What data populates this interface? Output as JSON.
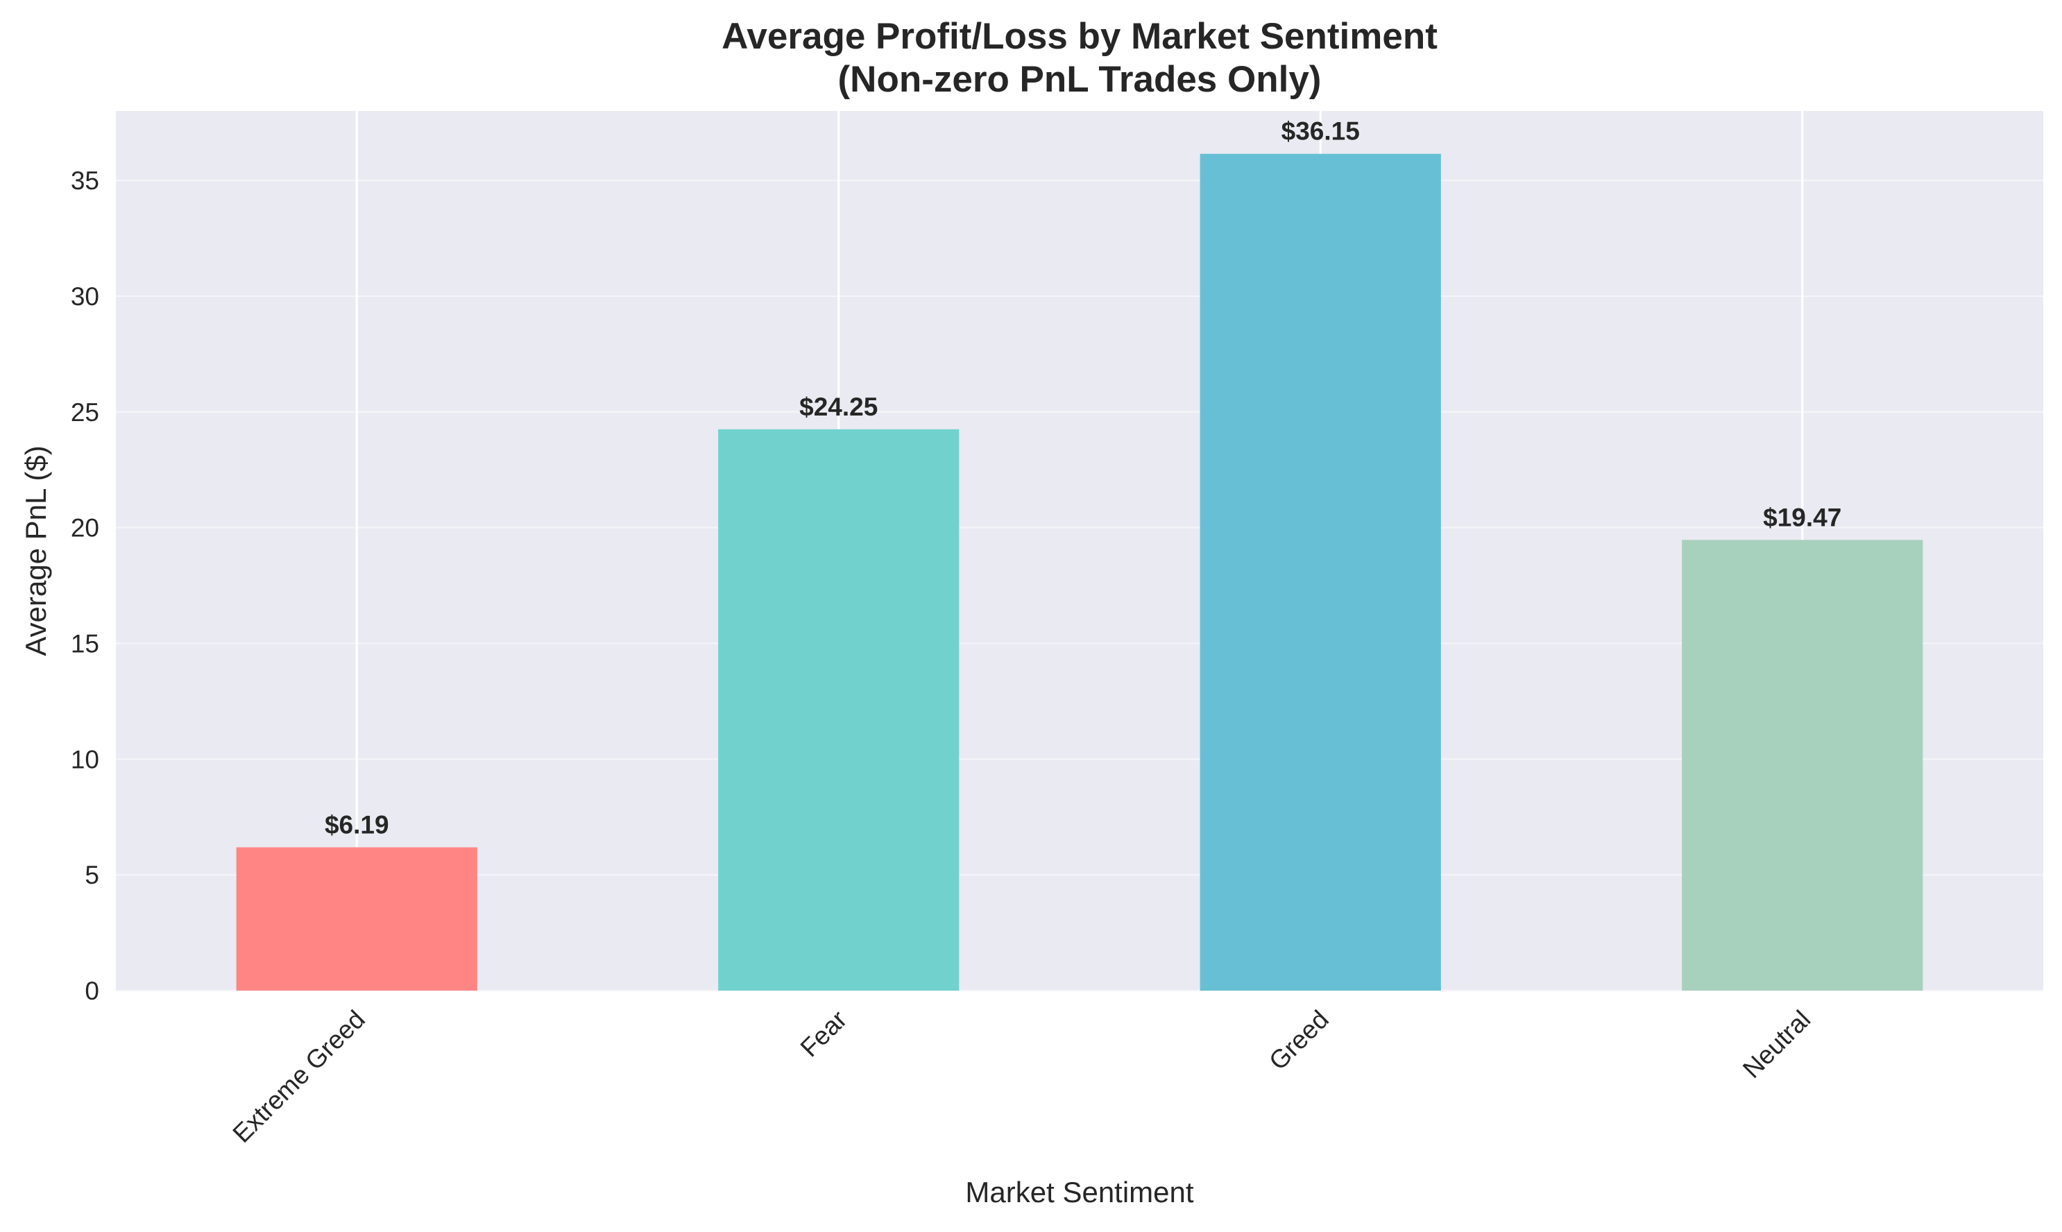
{
  "chart_data": {
    "type": "bar",
    "title": [
      "Average Profit/Loss by Market Sentiment",
      "(Non-zero PnL Trades Only)"
    ],
    "xlabel": "Market Sentiment",
    "ylabel": "Average PnL ($)",
    "categories": [
      "Extreme Greed",
      "Fear",
      "Greed",
      "Neutral"
    ],
    "values": [
      6.19,
      24.25,
      36.15,
      19.47
    ],
    "value_labels": [
      "$6.19",
      "$24.25",
      "$36.15",
      "$19.47"
    ],
    "bar_colors": [
      "#FF8585",
      "#71D2CD",
      "#67BFD5",
      "#A8D1BD"
    ],
    "ylim": [
      0,
      38
    ],
    "yticks": [
      0,
      5,
      10,
      15,
      20,
      25,
      30,
      35
    ],
    "grid": true,
    "plot_background": "#EAEAF2",
    "legend": "none"
  }
}
